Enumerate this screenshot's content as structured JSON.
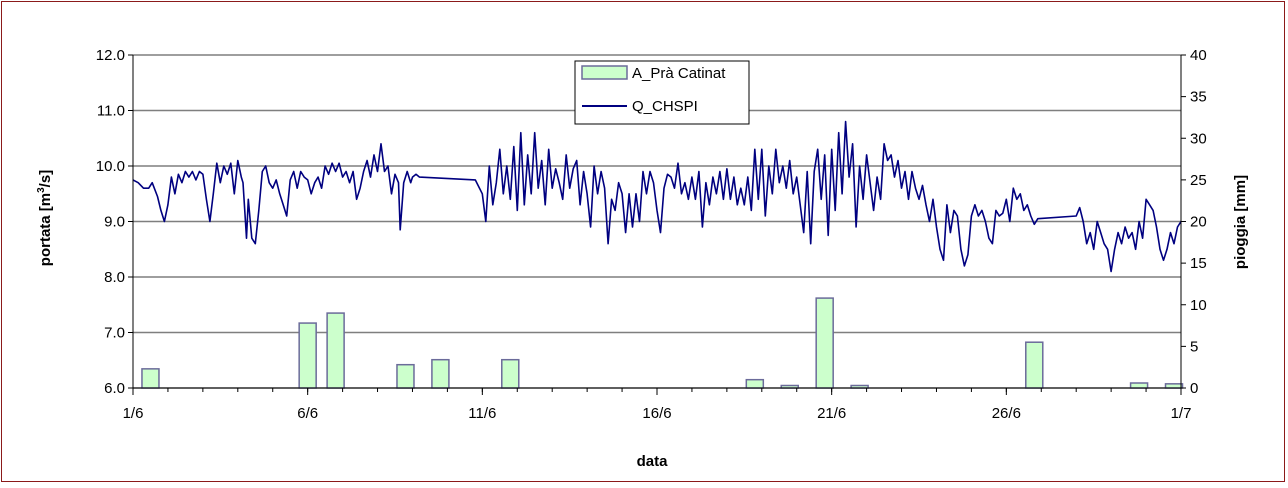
{
  "chart_data": {
    "type": "bar+line",
    "xlabel": "data",
    "ylabel_left": "portata [m",
    "ylabel_left_sup": "3",
    "ylabel_left_end": "/s]",
    "ylabel_right": "pioggia [mm]",
    "x_ticks": [
      "1/6",
      "6/6",
      "11/6",
      "16/6",
      "21/6",
      "26/6",
      "1/7"
    ],
    "x_tick_days": [
      1,
      6,
      11,
      16,
      21,
      26,
      31
    ],
    "xlim": [
      1,
      31
    ],
    "ylim_left": [
      6.0,
      12.0
    ],
    "y_left_ticks": [
      "6.0",
      "7.0",
      "8.0",
      "9.0",
      "10.0",
      "11.0",
      "12.0"
    ],
    "ylim_right": [
      0,
      40
    ],
    "y_right_ticks": [
      "0",
      "5",
      "10",
      "15",
      "20",
      "25",
      "30",
      "35",
      "40"
    ],
    "grid": "horizontal",
    "legend_position": "top-center",
    "series": [
      {
        "name": "A_Prà Catinat",
        "kind": "bar",
        "axis": "right",
        "color": "#ccffcc",
        "edge": "#6b6b9a",
        "points": [
          {
            "day": 1.5,
            "value": 2.3
          },
          {
            "day": 6.0,
            "value": 7.8
          },
          {
            "day": 6.8,
            "value": 9.0
          },
          {
            "day": 8.8,
            "value": 2.8
          },
          {
            "day": 9.8,
            "value": 3.4
          },
          {
            "day": 11.8,
            "value": 3.4
          },
          {
            "day": 18.8,
            "value": 1.0
          },
          {
            "day": 19.8,
            "value": 0.3
          },
          {
            "day": 20.8,
            "value": 10.8
          },
          {
            "day": 21.8,
            "value": 0.3
          },
          {
            "day": 26.8,
            "value": 5.5
          },
          {
            "day": 29.8,
            "value": 0.6
          },
          {
            "day": 30.8,
            "value": 0.5
          }
        ]
      },
      {
        "name": "Q_CHSPI",
        "kind": "line",
        "axis": "left",
        "color": "#000080",
        "points": [
          [
            1.0,
            9.75
          ],
          [
            1.15,
            9.7
          ],
          [
            1.3,
            9.6
          ],
          [
            1.45,
            9.6
          ],
          [
            1.55,
            9.7
          ],
          [
            1.7,
            9.45
          ],
          [
            1.8,
            9.2
          ],
          [
            1.9,
            9.0
          ],
          [
            2.0,
            9.3
          ],
          [
            2.1,
            9.8
          ],
          [
            2.2,
            9.5
          ],
          [
            2.3,
            9.85
          ],
          [
            2.4,
            9.7
          ],
          [
            2.5,
            9.9
          ],
          [
            2.6,
            9.8
          ],
          [
            2.7,
            9.9
          ],
          [
            2.8,
            9.75
          ],
          [
            2.9,
            9.9
          ],
          [
            3.0,
            9.85
          ],
          [
            3.1,
            9.4
          ],
          [
            3.2,
            9.0
          ],
          [
            3.3,
            9.5
          ],
          [
            3.4,
            10.05
          ],
          [
            3.5,
            9.7
          ],
          [
            3.6,
            10.0
          ],
          [
            3.7,
            9.85
          ],
          [
            3.8,
            10.05
          ],
          [
            3.9,
            9.5
          ],
          [
            4.0,
            10.1
          ],
          [
            4.1,
            9.8
          ],
          [
            4.15,
            9.7
          ],
          [
            4.25,
            8.7
          ],
          [
            4.3,
            9.4
          ],
          [
            4.4,
            8.7
          ],
          [
            4.5,
            8.6
          ],
          [
            4.6,
            9.2
          ],
          [
            4.7,
            9.9
          ],
          [
            4.8,
            10.0
          ],
          [
            4.9,
            9.7
          ],
          [
            5.0,
            9.6
          ],
          [
            5.1,
            9.75
          ],
          [
            5.2,
            9.5
          ],
          [
            5.3,
            9.3
          ],
          [
            5.4,
            9.1
          ],
          [
            5.5,
            9.75
          ],
          [
            5.6,
            9.9
          ],
          [
            5.7,
            9.6
          ],
          [
            5.8,
            9.9
          ],
          [
            5.9,
            9.8
          ],
          [
            6.0,
            9.75
          ],
          [
            6.1,
            9.5
          ],
          [
            6.2,
            9.7
          ],
          [
            6.3,
            9.8
          ],
          [
            6.4,
            9.6
          ],
          [
            6.5,
            10.0
          ],
          [
            6.6,
            9.85
          ],
          [
            6.7,
            10.05
          ],
          [
            6.8,
            9.9
          ],
          [
            6.9,
            10.05
          ],
          [
            7.0,
            9.8
          ],
          [
            7.1,
            9.9
          ],
          [
            7.2,
            9.7
          ],
          [
            7.3,
            9.9
          ],
          [
            7.4,
            9.4
          ],
          [
            7.5,
            9.6
          ],
          [
            7.6,
            9.9
          ],
          [
            7.7,
            10.1
          ],
          [
            7.8,
            9.8
          ],
          [
            7.9,
            10.2
          ],
          [
            8.0,
            9.9
          ],
          [
            8.1,
            10.4
          ],
          [
            8.2,
            9.9
          ],
          [
            8.3,
            10.0
          ],
          [
            8.4,
            9.5
          ],
          [
            8.5,
            9.85
          ],
          [
            8.6,
            9.7
          ],
          [
            8.65,
            8.85
          ],
          [
            8.75,
            9.7
          ],
          [
            8.85,
            9.9
          ],
          [
            8.95,
            9.7
          ],
          [
            9.0,
            9.8
          ],
          [
            9.1,
            9.85
          ],
          [
            9.2,
            9.8
          ],
          [
            10.8,
            9.75
          ],
          [
            11.0,
            9.5
          ],
          [
            11.1,
            9.0
          ],
          [
            11.2,
            10.0
          ],
          [
            11.3,
            9.3
          ],
          [
            11.4,
            9.7
          ],
          [
            11.5,
            10.3
          ],
          [
            11.6,
            9.5
          ],
          [
            11.7,
            10.0
          ],
          [
            11.8,
            9.4
          ],
          [
            11.9,
            10.35
          ],
          [
            12.0,
            9.2
          ],
          [
            12.1,
            10.6
          ],
          [
            12.2,
            9.3
          ],
          [
            12.3,
            10.2
          ],
          [
            12.4,
            9.5
          ],
          [
            12.5,
            10.6
          ],
          [
            12.6,
            9.6
          ],
          [
            12.7,
            10.1
          ],
          [
            12.8,
            9.3
          ],
          [
            12.9,
            10.3
          ],
          [
            13.0,
            9.6
          ],
          [
            13.1,
            9.95
          ],
          [
            13.2,
            9.7
          ],
          [
            13.3,
            9.4
          ],
          [
            13.4,
            10.2
          ],
          [
            13.5,
            9.6
          ],
          [
            13.6,
            9.95
          ],
          [
            13.7,
            10.1
          ],
          [
            13.8,
            9.3
          ],
          [
            13.9,
            9.9
          ],
          [
            14.0,
            9.5
          ],
          [
            14.1,
            8.9
          ],
          [
            14.2,
            10.0
          ],
          [
            14.3,
            9.5
          ],
          [
            14.4,
            9.9
          ],
          [
            14.5,
            9.6
          ],
          [
            14.6,
            8.6
          ],
          [
            14.7,
            9.4
          ],
          [
            14.8,
            9.2
          ],
          [
            14.9,
            9.7
          ],
          [
            15.0,
            9.5
          ],
          [
            15.1,
            8.8
          ],
          [
            15.2,
            9.5
          ],
          [
            15.3,
            8.9
          ],
          [
            15.4,
            9.5
          ],
          [
            15.5,
            9.0
          ],
          [
            15.6,
            9.9
          ],
          [
            15.7,
            9.5
          ],
          [
            15.8,
            9.9
          ],
          [
            15.9,
            9.7
          ],
          [
            16.0,
            9.2
          ],
          [
            16.1,
            8.8
          ],
          [
            16.2,
            9.6
          ],
          [
            16.3,
            9.85
          ],
          [
            16.4,
            9.8
          ],
          [
            16.5,
            9.6
          ],
          [
            16.6,
            10.05
          ],
          [
            16.7,
            9.5
          ],
          [
            16.8,
            9.7
          ],
          [
            16.9,
            9.4
          ],
          [
            17.0,
            9.8
          ],
          [
            17.1,
            9.4
          ],
          [
            17.2,
            9.9
          ],
          [
            17.3,
            8.9
          ],
          [
            17.4,
            9.7
          ],
          [
            17.5,
            9.3
          ],
          [
            17.6,
            9.8
          ],
          [
            17.7,
            9.5
          ],
          [
            17.8,
            9.9
          ],
          [
            17.9,
            9.4
          ],
          [
            18.0,
            9.95
          ],
          [
            18.1,
            9.4
          ],
          [
            18.2,
            9.8
          ],
          [
            18.3,
            9.3
          ],
          [
            18.4,
            9.6
          ],
          [
            18.5,
            9.3
          ],
          [
            18.6,
            9.8
          ],
          [
            18.7,
            9.2
          ],
          [
            18.8,
            10.3
          ],
          [
            18.9,
            9.4
          ],
          [
            19.0,
            10.3
          ],
          [
            19.1,
            9.1
          ],
          [
            19.2,
            10.0
          ],
          [
            19.3,
            9.5
          ],
          [
            19.4,
            10.3
          ],
          [
            19.5,
            9.7
          ],
          [
            19.6,
            10.0
          ],
          [
            19.7,
            9.6
          ],
          [
            19.8,
            10.1
          ],
          [
            19.9,
            9.5
          ],
          [
            20.0,
            9.8
          ],
          [
            20.1,
            9.3
          ],
          [
            20.2,
            8.8
          ],
          [
            20.3,
            9.9
          ],
          [
            20.4,
            8.6
          ],
          [
            20.5,
            9.9
          ],
          [
            20.6,
            10.3
          ],
          [
            20.7,
            9.4
          ],
          [
            20.8,
            10.2
          ],
          [
            20.9,
            8.75
          ],
          [
            21.0,
            10.3
          ],
          [
            21.1,
            9.2
          ],
          [
            21.2,
            10.6
          ],
          [
            21.3,
            9.5
          ],
          [
            21.4,
            10.8
          ],
          [
            21.5,
            9.8
          ],
          [
            21.6,
            10.4
          ],
          [
            21.7,
            8.9
          ],
          [
            21.8,
            10.0
          ],
          [
            21.9,
            9.4
          ],
          [
            22.0,
            10.2
          ],
          [
            22.1,
            9.7
          ],
          [
            22.2,
            9.2
          ],
          [
            22.3,
            9.8
          ],
          [
            22.4,
            9.4
          ],
          [
            22.5,
            10.4
          ],
          [
            22.6,
            10.1
          ],
          [
            22.7,
            10.2
          ],
          [
            22.8,
            9.8
          ],
          [
            22.9,
            10.1
          ],
          [
            23.0,
            9.6
          ],
          [
            23.1,
            9.9
          ],
          [
            23.2,
            9.4
          ],
          [
            23.3,
            9.9
          ],
          [
            23.4,
            9.6
          ],
          [
            23.5,
            9.4
          ],
          [
            23.6,
            9.65
          ],
          [
            23.7,
            9.3
          ],
          [
            23.8,
            9.0
          ],
          [
            23.9,
            9.4
          ],
          [
            24.0,
            8.9
          ],
          [
            24.1,
            8.5
          ],
          [
            24.2,
            8.3
          ],
          [
            24.3,
            9.3
          ],
          [
            24.4,
            8.8
          ],
          [
            24.5,
            9.2
          ],
          [
            24.6,
            9.1
          ],
          [
            24.7,
            8.5
          ],
          [
            24.8,
            8.2
          ],
          [
            24.9,
            8.4
          ],
          [
            25.0,
            9.1
          ],
          [
            25.1,
            9.3
          ],
          [
            25.2,
            9.1
          ],
          [
            25.3,
            9.2
          ],
          [
            25.4,
            9.0
          ],
          [
            25.5,
            8.7
          ],
          [
            25.6,
            8.6
          ],
          [
            25.7,
            9.2
          ],
          [
            25.8,
            9.1
          ],
          [
            25.9,
            9.15
          ],
          [
            26.0,
            9.4
          ],
          [
            26.1,
            9.0
          ],
          [
            26.2,
            9.6
          ],
          [
            26.3,
            9.4
          ],
          [
            26.4,
            9.5
          ],
          [
            26.5,
            9.2
          ],
          [
            26.6,
            9.3
          ],
          [
            26.7,
            9.1
          ],
          [
            26.8,
            8.95
          ],
          [
            26.9,
            9.05
          ],
          [
            28.0,
            9.1
          ],
          [
            28.1,
            9.25
          ],
          [
            28.2,
            9.0
          ],
          [
            28.3,
            8.6
          ],
          [
            28.4,
            8.8
          ],
          [
            28.5,
            8.5
          ],
          [
            28.6,
            9.0
          ],
          [
            28.7,
            8.8
          ],
          [
            28.8,
            8.6
          ],
          [
            28.9,
            8.5
          ],
          [
            29.0,
            8.1
          ],
          [
            29.1,
            8.5
          ],
          [
            29.2,
            8.8
          ],
          [
            29.3,
            8.6
          ],
          [
            29.4,
            8.9
          ],
          [
            29.5,
            8.7
          ],
          [
            29.6,
            8.8
          ],
          [
            29.7,
            8.5
          ],
          [
            29.8,
            9.0
          ],
          [
            29.9,
            8.7
          ],
          [
            30.0,
            9.4
          ],
          [
            30.1,
            9.3
          ],
          [
            30.2,
            9.2
          ],
          [
            30.3,
            8.9
          ],
          [
            30.4,
            8.5
          ],
          [
            30.5,
            8.3
          ],
          [
            30.6,
            8.5
          ],
          [
            30.7,
            8.8
          ],
          [
            30.8,
            8.6
          ],
          [
            30.9,
            8.9
          ],
          [
            31.0,
            9.0
          ]
        ]
      }
    ]
  }
}
